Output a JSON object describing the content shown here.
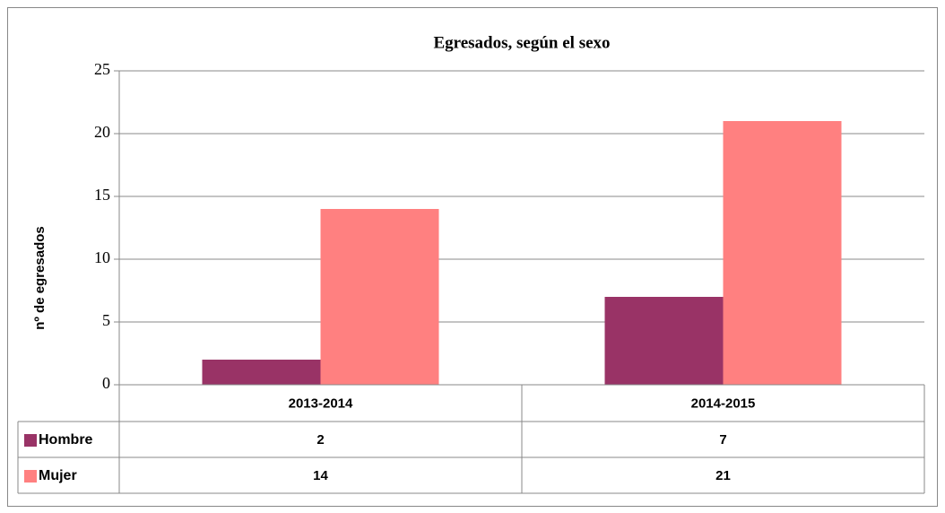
{
  "chart_data": {
    "type": "bar",
    "title": "Egresados, según el sexo",
    "y_label": "nº de egresados",
    "categories": [
      "2013-2014",
      "2014-2015"
    ],
    "series": [
      {
        "name": "Hombre",
        "color": "#993366",
        "values": [
          2,
          7
        ]
      },
      {
        "name": "Mujer",
        "color": "#ff8080",
        "values": [
          14,
          21
        ]
      }
    ],
    "ylim": [
      0,
      25
    ],
    "yticks": [
      0,
      5,
      10,
      15,
      20,
      25
    ],
    "grid": true
  }
}
